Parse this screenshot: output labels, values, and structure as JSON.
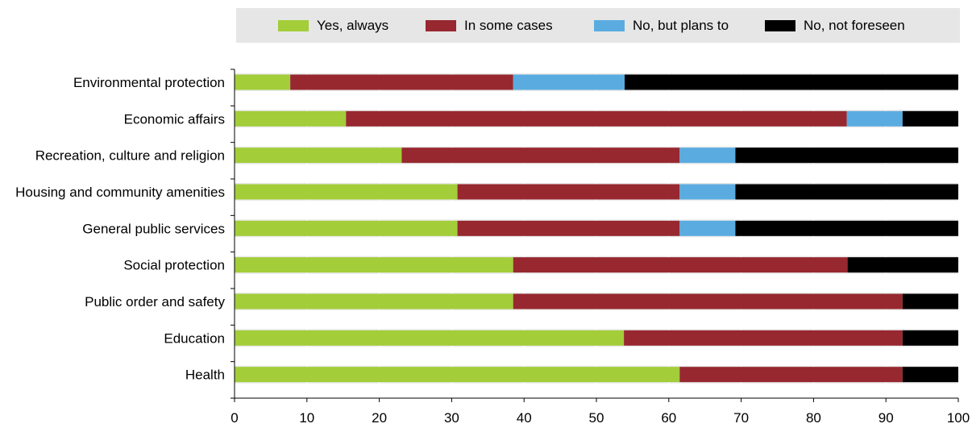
{
  "chart_data": {
    "type": "bar",
    "orientation": "horizontal",
    "stacked": true,
    "categories": [
      "Environmental protection",
      "Economic affairs",
      "Recreation, culture and religion",
      "Housing and community amenities",
      "General public services",
      "Social protection",
      "Public order and safety",
      "Education",
      "Health"
    ],
    "series": [
      {
        "name": "Yes, always",
        "color": "#a3cd39",
        "values": [
          7.7,
          15.4,
          23.1,
          30.8,
          30.8,
          38.5,
          38.5,
          53.8,
          61.5
        ]
      },
      {
        "name": "In some cases",
        "color": "#97282f",
        "values": [
          30.8,
          69.2,
          38.4,
          30.7,
          30.7,
          46.2,
          53.8,
          38.5,
          30.8
        ]
      },
      {
        "name": "No, but plans to",
        "color": "#5aace0",
        "values": [
          15.4,
          7.7,
          7.7,
          7.7,
          7.7,
          0,
          0,
          0,
          0
        ]
      },
      {
        "name": "No, not foreseen",
        "color": "#000000",
        "values": [
          46.1,
          7.7,
          30.8,
          30.8,
          30.8,
          15.3,
          7.7,
          7.7,
          7.7
        ]
      }
    ],
    "xlim": [
      0,
      100
    ],
    "xticks": [
      0,
      10,
      20,
      30,
      40,
      50,
      60,
      70,
      80,
      90,
      100
    ],
    "xlabel": "",
    "ylabel": "",
    "title": "",
    "grid": true,
    "legend_position": "top"
  }
}
